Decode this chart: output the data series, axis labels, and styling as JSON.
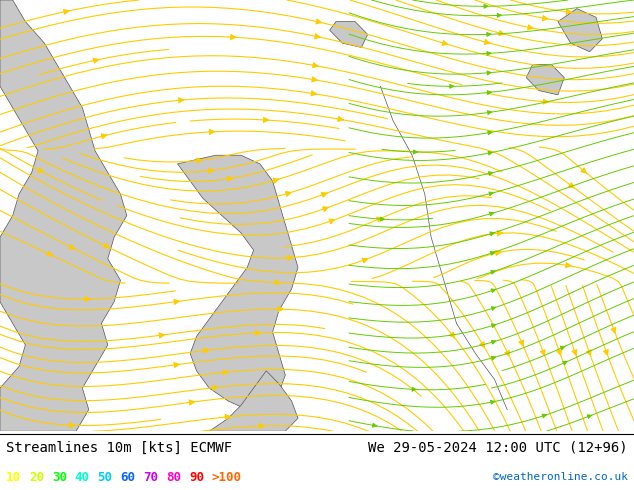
{
  "title_left": "Streamlines 10m [kts] ECMWF",
  "title_right": "We 29-05-2024 12:00 UTC (12+96)",
  "credit": "©weatheronline.co.uk",
  "background_color": "#b3ffb3",
  "land_color": "#c8c8c8",
  "land_edge_color": "#555555",
  "streamline_color_yellow": "#ffcc00",
  "streamline_color_green": "#66cc00",
  "legend_values": [
    "10",
    "20",
    "30",
    "40",
    "50",
    "60",
    "70",
    "80",
    "90",
    ">100"
  ],
  "legend_colors": [
    "#ffff00",
    "#ccff00",
    "#00ff00",
    "#00ffcc",
    "#00ccff",
    "#0066ff",
    "#cc00ff",
    "#ff00cc",
    "#ff0000",
    "#ff6600"
  ],
  "title_color": "#000000",
  "title_fontsize": 10,
  "legend_fontsize": 9,
  "credit_color": "#0066cc",
  "credit_fontsize": 8,
  "fig_width": 6.34,
  "fig_height": 4.9,
  "dpi": 100
}
